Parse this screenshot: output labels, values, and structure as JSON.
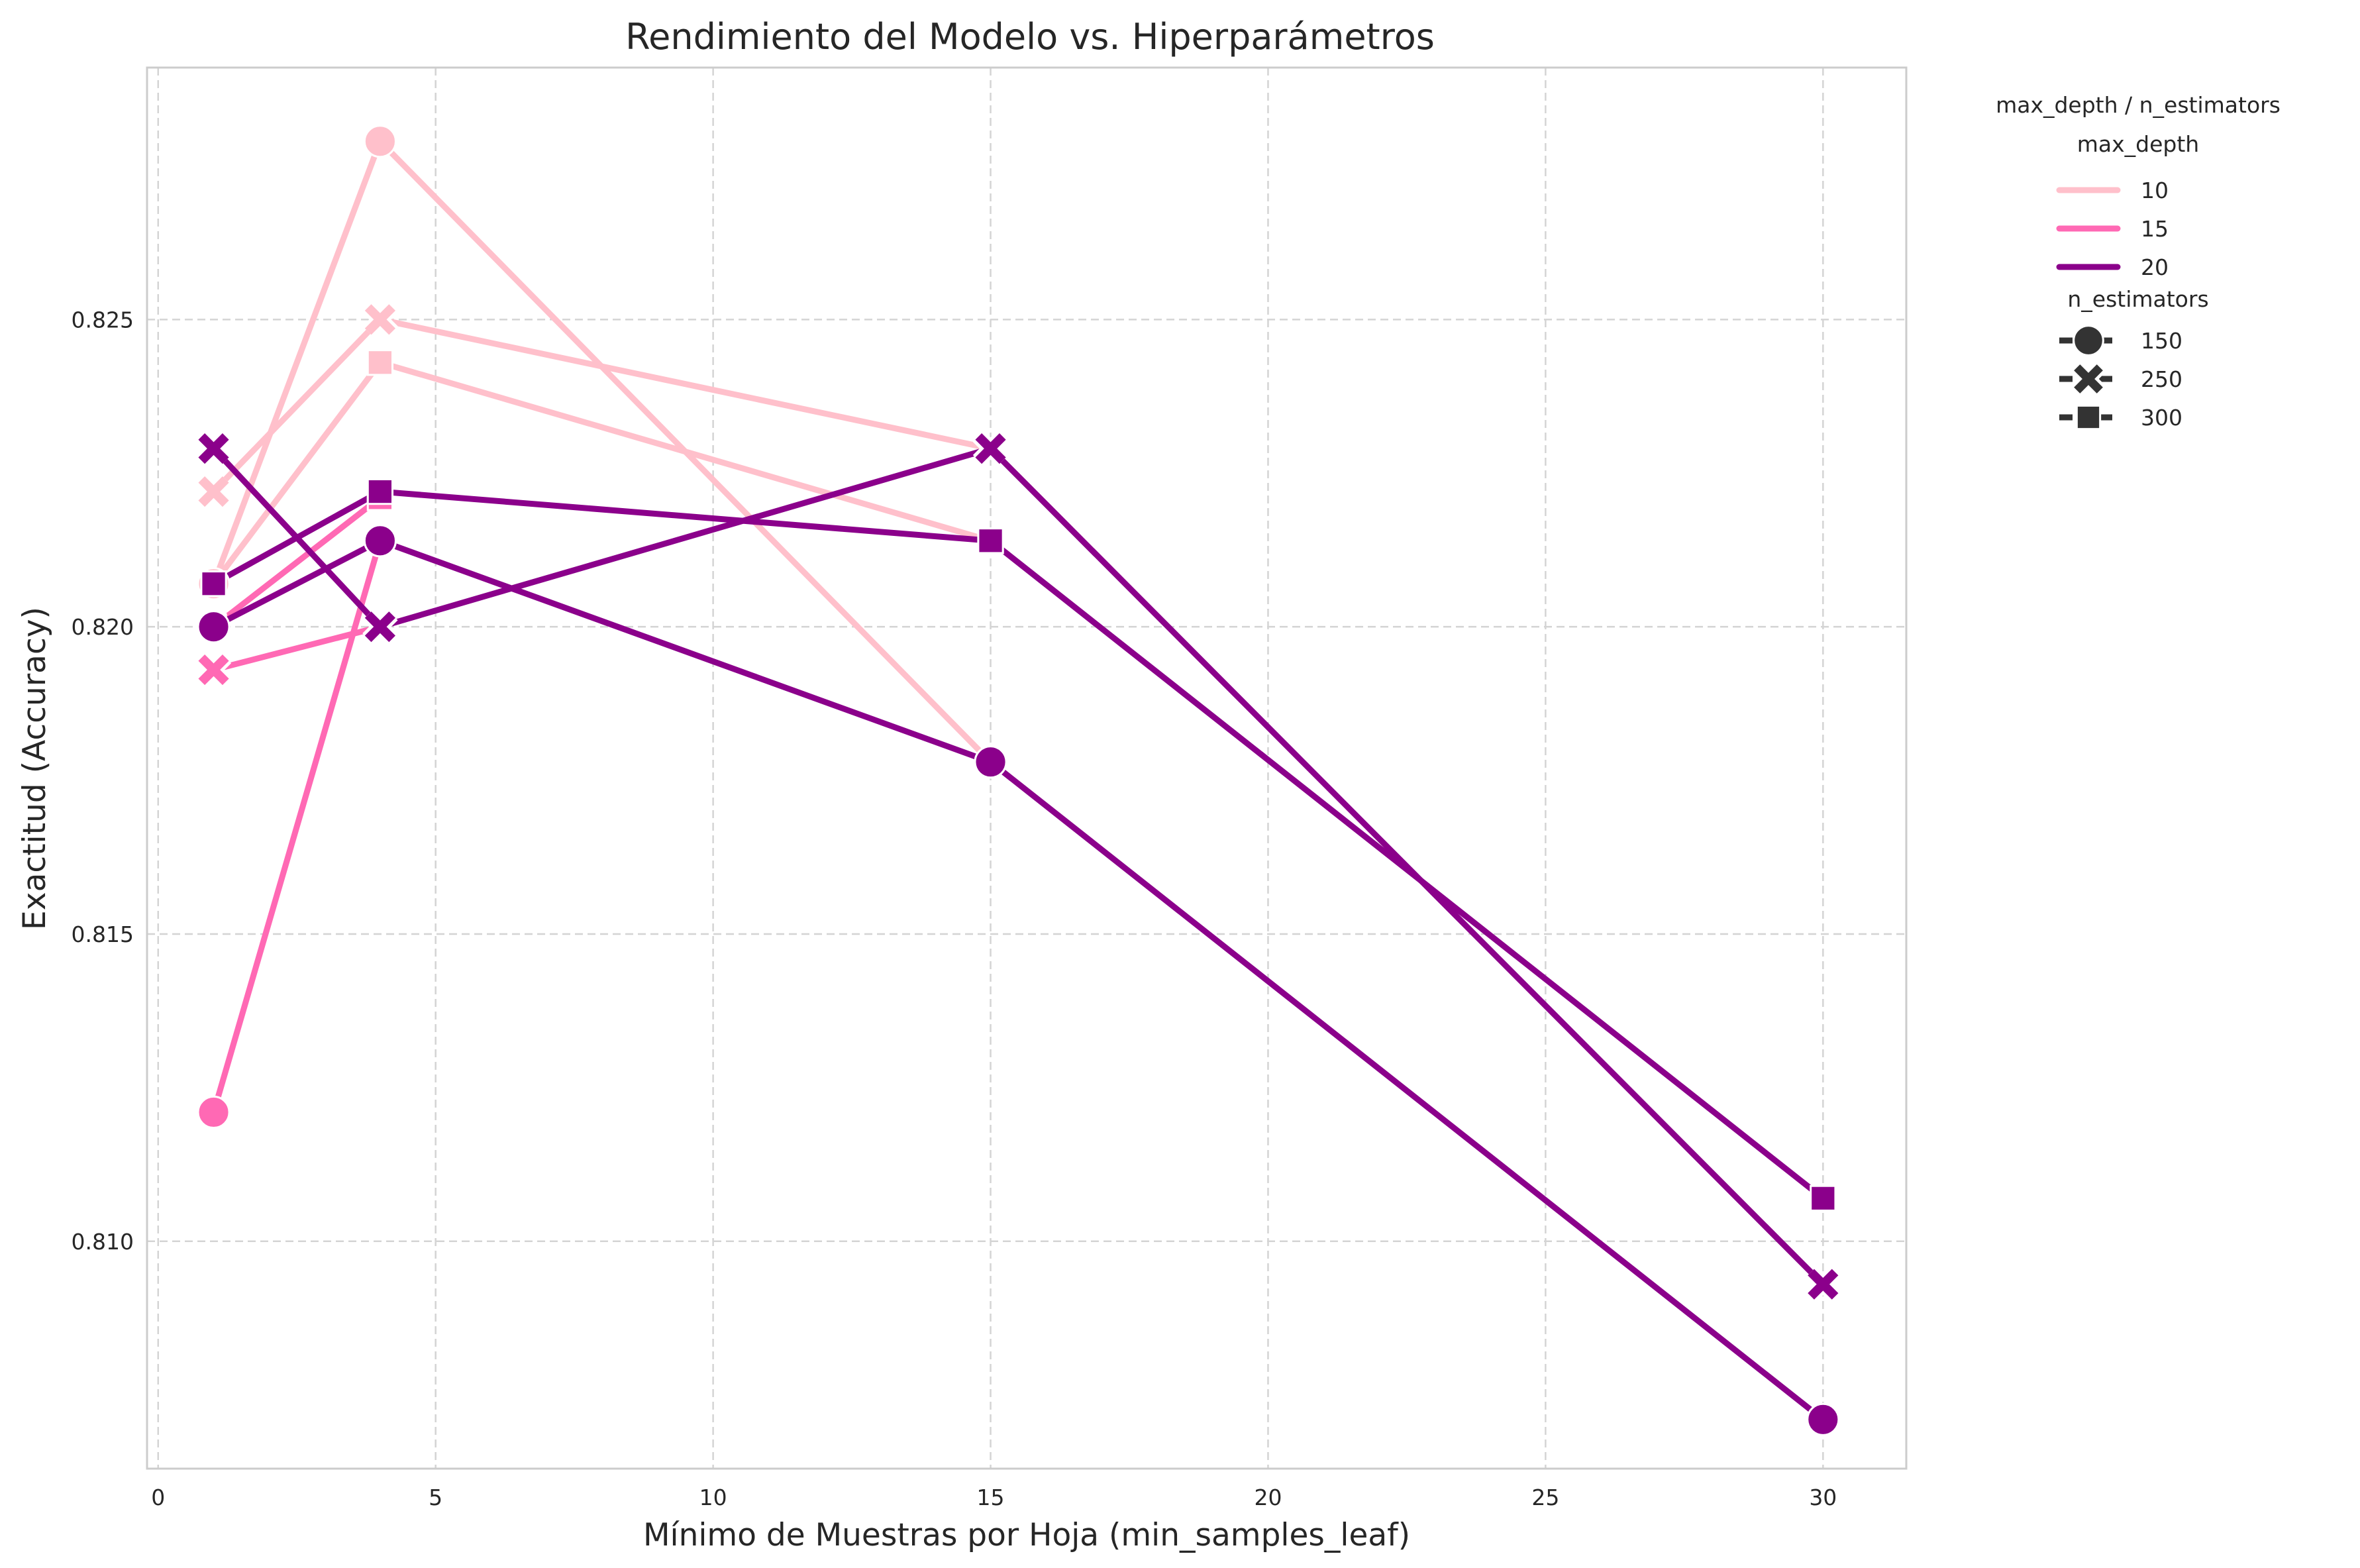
{
  "chart_data": {
    "type": "line",
    "title": "Rendimiento del Modelo vs. Hiperparámetros",
    "xlabel": "Mínimo de Muestras por Hoja (min_samples_leaf)",
    "ylabel": "Exactitud (Accuracy)",
    "xlim": [
      -0.2,
      31.5
    ],
    "ylim": [
      0.8063,
      0.8291
    ],
    "x_ticks": [
      0,
      5,
      10,
      15,
      20,
      25,
      30
    ],
    "y_ticks": [
      0.81,
      0.815,
      0.82,
      0.825
    ],
    "x_tick_labels": [
      "0",
      "5",
      "10",
      "15",
      "20",
      "25",
      "30"
    ],
    "y_tick_labels": [
      "0.810",
      "0.815",
      "0.820",
      "0.825"
    ],
    "grid": true,
    "legend_position": "outside-top-right",
    "legend": {
      "title": "max_depth / n_estimators",
      "hue_title": "max_depth",
      "style_title": "n_estimators",
      "hue_entries": [
        {
          "label": "10",
          "color": "#ffc0cb"
        },
        {
          "label": "15",
          "color": "#ff69b4"
        },
        {
          "label": "20",
          "color": "#8b008b"
        }
      ],
      "style_entries": [
        {
          "label": "150",
          "marker": "circle"
        },
        {
          "label": "250",
          "marker": "x"
        },
        {
          "label": "300",
          "marker": "square"
        }
      ]
    },
    "series": [
      {
        "max_depth": "10",
        "n_estimators": "150",
        "color": "#ffc0cb",
        "marker": "circle",
        "x": [
          1,
          4,
          15
        ],
        "y": [
          0.8207,
          0.8279,
          0.8178
        ]
      },
      {
        "max_depth": "10",
        "n_estimators": "250",
        "color": "#ffc0cb",
        "marker": "x",
        "x": [
          1,
          4,
          15
        ],
        "y": [
          0.8222,
          0.825,
          0.8229
        ]
      },
      {
        "max_depth": "10",
        "n_estimators": "300",
        "color": "#ffc0cb",
        "marker": "square",
        "x": [
          1,
          4,
          15
        ],
        "y": [
          0.8207,
          0.8243,
          0.8214
        ]
      },
      {
        "max_depth": "15",
        "n_estimators": "150",
        "color": "#ff69b4",
        "marker": "circle",
        "x": [
          1,
          4
        ],
        "y": [
          0.8121,
          0.8214
        ]
      },
      {
        "max_depth": "15",
        "n_estimators": "250",
        "color": "#ff69b4",
        "marker": "x",
        "x": [
          1,
          4
        ],
        "y": [
          0.8193,
          0.82
        ]
      },
      {
        "max_depth": "15",
        "n_estimators": "300",
        "color": "#ff69b4",
        "marker": "square",
        "x": [
          1,
          4
        ],
        "y": [
          0.82,
          0.8221
        ]
      },
      {
        "max_depth": "20",
        "n_estimators": "150",
        "color": "#8b008b",
        "marker": "circle",
        "x": [
          1,
          4,
          15,
          30
        ],
        "y": [
          0.82,
          0.8214,
          0.8178,
          0.8071
        ]
      },
      {
        "max_depth": "20",
        "n_estimators": "250",
        "color": "#8b008b",
        "marker": "x",
        "x": [
          1,
          4,
          15,
          30
        ],
        "y": [
          0.8229,
          0.82,
          0.8229,
          0.8093
        ]
      },
      {
        "max_depth": "20",
        "n_estimators": "300",
        "color": "#8b008b",
        "marker": "square",
        "x": [
          1,
          4,
          15,
          30
        ],
        "y": [
          0.8207,
          0.8222,
          0.8214,
          0.8107
        ]
      }
    ]
  }
}
